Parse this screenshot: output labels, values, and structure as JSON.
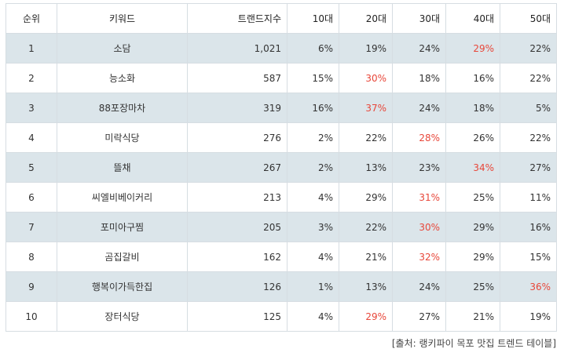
{
  "table": {
    "headers": [
      "순위",
      "키워드",
      "트랜드지수",
      "10대",
      "20대",
      "30대",
      "40대",
      "50대"
    ],
    "highlight_color": "#e8473a",
    "alt_row_color": "#dbe5ea",
    "rows": [
      {
        "rank": "1",
        "keyword": "소담",
        "trend": "1,021",
        "ages": [
          "6%",
          "19%",
          "24%",
          "29%",
          "22%"
        ],
        "highlight": 3
      },
      {
        "rank": "2",
        "keyword": "능소화",
        "trend": "587",
        "ages": [
          "15%",
          "30%",
          "18%",
          "16%",
          "22%"
        ],
        "highlight": 1
      },
      {
        "rank": "3",
        "keyword": "88포장마차",
        "trend": "319",
        "ages": [
          "16%",
          "37%",
          "24%",
          "18%",
          "5%"
        ],
        "highlight": 1
      },
      {
        "rank": "4",
        "keyword": "미락식당",
        "trend": "276",
        "ages": [
          "2%",
          "22%",
          "28%",
          "26%",
          "22%"
        ],
        "highlight": 2
      },
      {
        "rank": "5",
        "keyword": "뜰채",
        "trend": "267",
        "ages": [
          "2%",
          "13%",
          "23%",
          "34%",
          "27%"
        ],
        "highlight": 3
      },
      {
        "rank": "6",
        "keyword": "씨엘비베이커리",
        "trend": "213",
        "ages": [
          "4%",
          "29%",
          "31%",
          "25%",
          "11%"
        ],
        "highlight": 2
      },
      {
        "rank": "7",
        "keyword": "포미아구찜",
        "trend": "205",
        "ages": [
          "3%",
          "22%",
          "30%",
          "29%",
          "16%"
        ],
        "highlight": 2
      },
      {
        "rank": "8",
        "keyword": "곰집갈비",
        "trend": "162",
        "ages": [
          "4%",
          "21%",
          "32%",
          "29%",
          "15%"
        ],
        "highlight": 2
      },
      {
        "rank": "9",
        "keyword": "행복이가득한집",
        "trend": "126",
        "ages": [
          "1%",
          "13%",
          "24%",
          "25%",
          "36%"
        ],
        "highlight": 4
      },
      {
        "rank": "10",
        "keyword": "장터식당",
        "trend": "125",
        "ages": [
          "4%",
          "29%",
          "27%",
          "21%",
          "19%"
        ],
        "highlight": 1
      }
    ]
  },
  "source": "[출처: 랭키파이 목포 맛집 트렌드 테이블]"
}
